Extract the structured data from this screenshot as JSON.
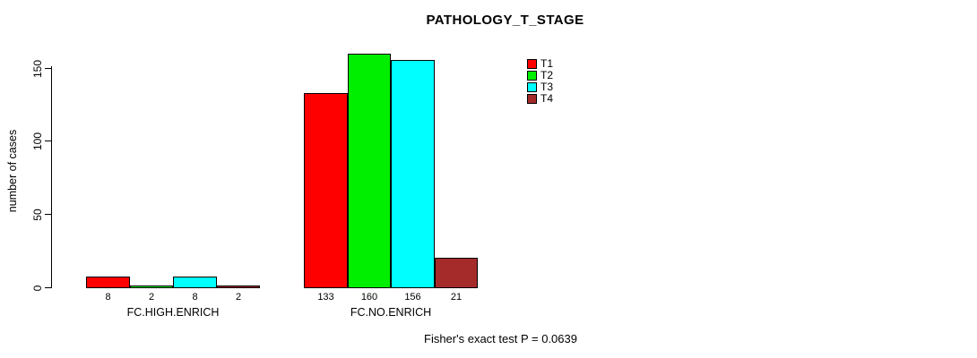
{
  "title": "PATHOLOGY_T_STAGE",
  "footer": {
    "note": "Fisher's exact test P = 0.0639"
  },
  "chart_data": {
    "type": "bar",
    "title": "PATHOLOGY_T_STAGE",
    "categories": [
      "FC.HIGH.ENRICH",
      "FC.NO.ENRICH"
    ],
    "series": [
      {
        "name": "T1",
        "color": "#ff0000",
        "values": [
          8,
          133
        ]
      },
      {
        "name": "T2",
        "color": "#00ee00",
        "values": [
          2,
          160
        ]
      },
      {
        "name": "T3",
        "color": "#00ffff",
        "values": [
          8,
          156
        ]
      },
      {
        "name": "T4",
        "color": "#a52a2a",
        "values": [
          2,
          21
        ]
      }
    ],
    "xlabel": "",
    "ylabel": "number of cases",
    "yticks": [
      0,
      50,
      100,
      150
    ],
    "ylim": [
      0,
      165
    ],
    "grid": false,
    "bar_value_labels": true,
    "legend_position": "inside-top-right",
    "annotation": "Fisher's exact test P = 0.0639"
  }
}
